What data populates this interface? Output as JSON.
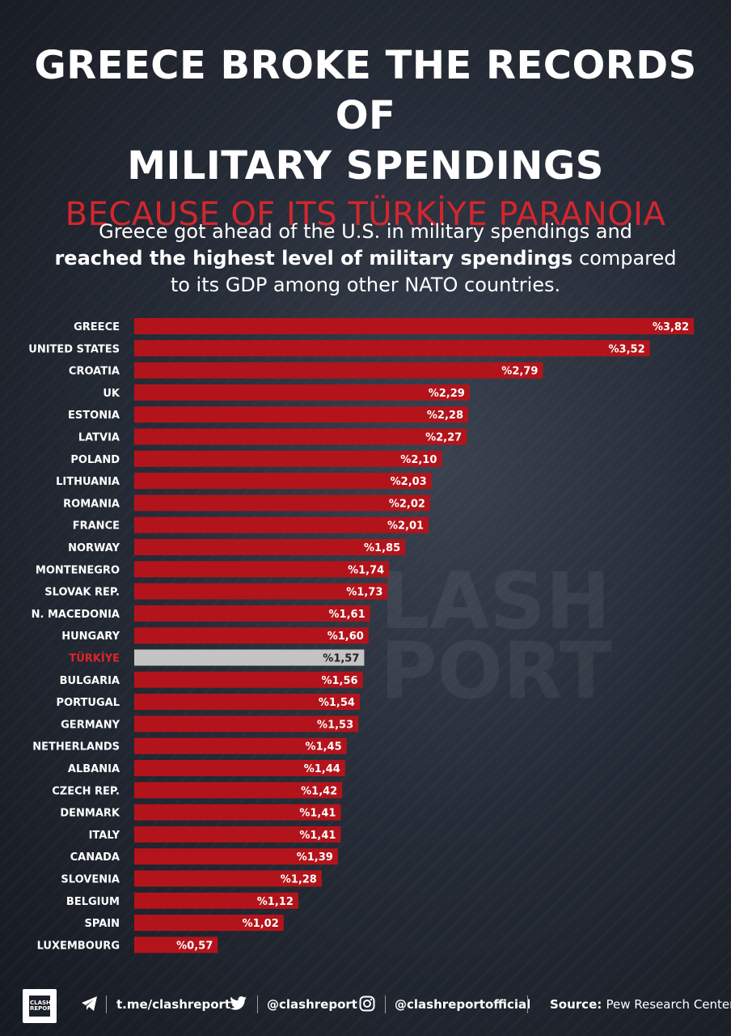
{
  "header": {
    "title_line1": "GREECE BROKE THE RECORDS OF",
    "title_line2": "MILITARY SPENDINGS",
    "subtitle": "BECAUSE OF ITS TÜRKİYE PARANOIA",
    "desc_line1": "Greece got ahead of the U.S. in military spendings and",
    "desc_bold": "reached the highest level of military spendings",
    "desc_line2_rest": " compared",
    "desc_line3": "to its GDP among other NATO countries."
  },
  "watermark": {
    "line1": "LASH",
    "line2": "PORT"
  },
  "colors": {
    "bar": "#b3141b",
    "bar_highlight": "#c4c4c4",
    "highlight_label": "#e0242b",
    "subtitle": "#d3262e"
  },
  "chart_data": {
    "type": "bar",
    "orientation": "horizontal",
    "categories": [
      "GREECE",
      "UNITED STATES",
      "CROATIA",
      "UK",
      "ESTONIA",
      "LATVIA",
      "POLAND",
      "LITHUANIA",
      "ROMANIA",
      "FRANCE",
      "NORWAY",
      "MONTENEGRO",
      "SLOVAK REP.",
      "N. MACEDONIA",
      "HUNGARY",
      "TÜRKİYE",
      "BULGARIA",
      "PORTUGAL",
      "GERMANY",
      "NETHERLANDS",
      "ALBANIA",
      "CZECH REP.",
      "DENMARK",
      "ITALY",
      "CANADA",
      "SLOVENIA",
      "BELGIUM",
      "SPAIN",
      "LUXEMBOURG"
    ],
    "values": [
      3.82,
      3.52,
      2.79,
      2.29,
      2.28,
      2.27,
      2.1,
      2.03,
      2.02,
      2.01,
      1.85,
      1.74,
      1.73,
      1.61,
      1.6,
      1.57,
      1.56,
      1.54,
      1.53,
      1.45,
      1.44,
      1.42,
      1.41,
      1.41,
      1.39,
      1.28,
      1.12,
      1.02,
      0.57
    ],
    "value_labels": [
      "%3,82",
      "%3,52",
      "%2,79",
      "%2,29",
      "%2,28",
      "%2,27",
      "%2,10",
      "%2,03",
      "%2,02",
      "%2,01",
      "%1,85",
      "%1,74",
      "%1,73",
      "%1,61",
      "%1,60",
      "%1,57",
      "%1,56",
      "%1,54",
      "%1,53",
      "%1,45",
      "%1,44",
      "%1,42",
      "%1,41",
      "%1,41",
      "%1,39",
      "%1,28",
      "%1,12",
      "%1,02",
      "%0,57"
    ],
    "highlight": "TÜRKİYE",
    "xlim": [
      0,
      3.82
    ],
    "grid": false,
    "legend": "none"
  },
  "footer": {
    "logo_text_1": "CLASH",
    "logo_text_2": "REPORT",
    "telegram": "t.me/clashreport",
    "twitter": "@clashreport",
    "instagram": "@clashreportofficial",
    "source_label": "Source:",
    "source_value": "Pew Research Center"
  }
}
